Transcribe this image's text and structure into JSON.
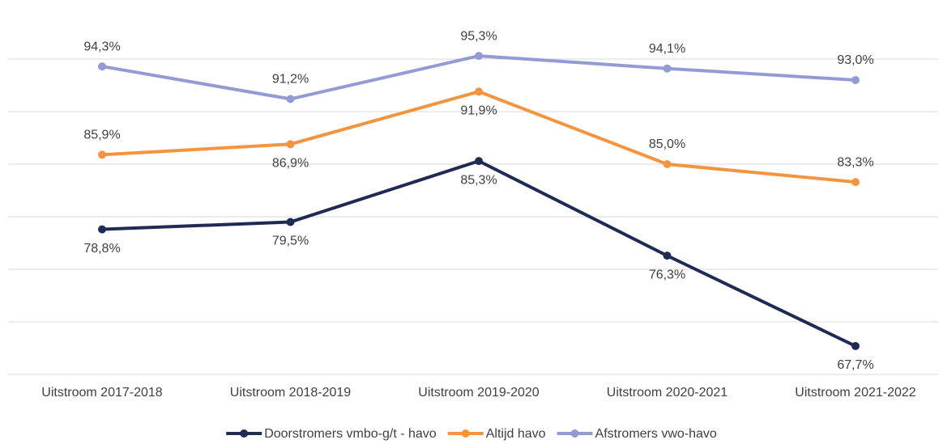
{
  "chart_data": {
    "type": "line",
    "categories": [
      "Uitstroom 2017-2018",
      "Uitstroom 2018-2019",
      "Uitstroom 2019-2020",
      "Uitstroom 2020-2021",
      "Uitstroom 2021-2022"
    ],
    "series": [
      {
        "name": "Doorstromers vmbo-g/t - havo",
        "color": "#1f2a55",
        "values": [
          78.8,
          79.5,
          85.3,
          76.3,
          67.7
        ],
        "value_labels": [
          "78,8%",
          "79,5%",
          "85,3%",
          "76,3%",
          "67,7%"
        ]
      },
      {
        "name": "Altijd havo",
        "color": "#f4943e",
        "values": [
          85.9,
          86.9,
          91.9,
          85.0,
          83.3
        ],
        "value_labels": [
          "85,9%",
          "86,9%",
          "91,9%",
          "85,0%",
          "83,3%"
        ]
      },
      {
        "name": "Afstromers vwo-havo",
        "color": "#939bd4",
        "values": [
          94.3,
          91.2,
          95.3,
          94.1,
          93.0
        ],
        "value_labels": [
          "94,3%",
          "91,2%",
          "95,3%",
          "94,1%",
          "93,0%"
        ]
      }
    ],
    "ylim": [
      65,
      100
    ],
    "yticks": [
      65,
      70,
      75,
      80,
      85,
      90,
      95
    ],
    "grid": true,
    "legend": "bottom"
  }
}
